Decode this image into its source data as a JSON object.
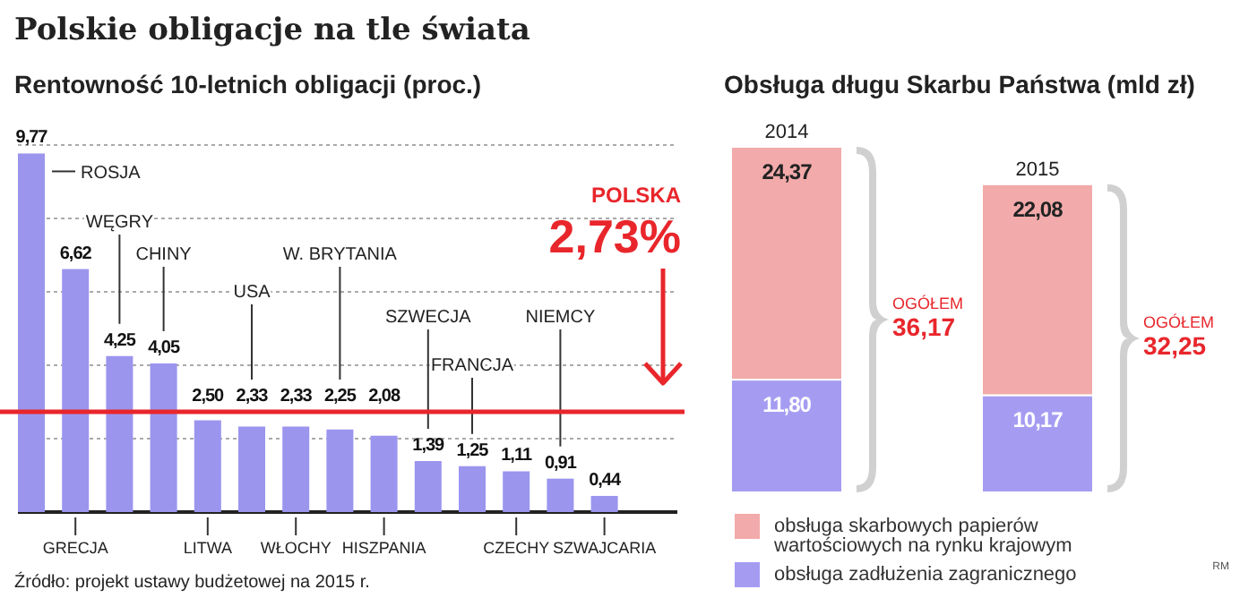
{
  "chart_data": [
    {
      "type": "bar",
      "title": "Polskie obligacje na tle świata",
      "subtitle": "Rentowność 10-letnich obligacji (proc.)",
      "categories": [
        null,
        "GRECJA",
        "WĘGRY",
        "CHINY",
        "LITWA",
        "USA",
        "WŁOCHY",
        "W. BRYTANIA",
        "HISZPANIA",
        "SZWECJA",
        "FRANCJA",
        "CZECHY",
        "NIEMCY",
        "SZWAJCARIA"
      ],
      "values": [
        9.77,
        6.62,
        4.25,
        4.05,
        2.5,
        2.33,
        2.33,
        2.25,
        2.08,
        1.39,
        1.25,
        1.11,
        0.91,
        0.44
      ],
      "value_labels": [
        "9,77",
        "6,62",
        "4,25",
        "4,05",
        "2,50",
        "2,33",
        "2,33",
        "2,25",
        "2,08",
        "1,39",
        "1,25",
        "1,11",
        "0,91",
        "0,44"
      ],
      "color": "#9b95ee",
      "ylim": [
        0,
        10
      ],
      "yticks": [
        {
          "value": 0,
          "label": null
        },
        {
          "value": 2,
          "label": null
        },
        {
          "value": 4,
          "label": null
        },
        {
          "value": 6,
          "label": null
        },
        {
          "value": 8,
          "label": null
        },
        {
          "value": 10,
          "label": null
        }
      ],
      "grid": "y",
      "tick_labels": "x",
      "ref_lines": [
        {
          "axis": "y",
          "value": 2.73,
          "label": "POLSKA 2,73%",
          "color": "#e8262b"
        }
      ],
      "annotations": [
        "ROSJA",
        "Źródło: projekt ustawy budżetowej na 2015 r."
      ]
    },
    {
      "type": "bar",
      "title": "Obsługa długu Skarbu Państwa (mld zł)",
      "stacked": true,
      "categories": [
        "2014",
        "2015"
      ],
      "series": [
        {
          "name": "obsługa zadłużenia zagranicznego",
          "color": "#a59cf2",
          "values": [
            11.8,
            10.17
          ],
          "value_labels": [
            "11,80",
            "10,17"
          ]
        },
        {
          "name": "obsługa skarbowych papierów wartościowych na rynku krajowym",
          "color": "#f2aaaa",
          "values": [
            24.37,
            22.08
          ],
          "value_labels": [
            "24,37",
            "22,08"
          ]
        }
      ],
      "totals": [
        "OGÓŁEM 36,17",
        "OGÓŁEM 32,25"
      ],
      "legend": "bottom",
      "annotations": [
        "RM"
      ]
    }
  ]
}
